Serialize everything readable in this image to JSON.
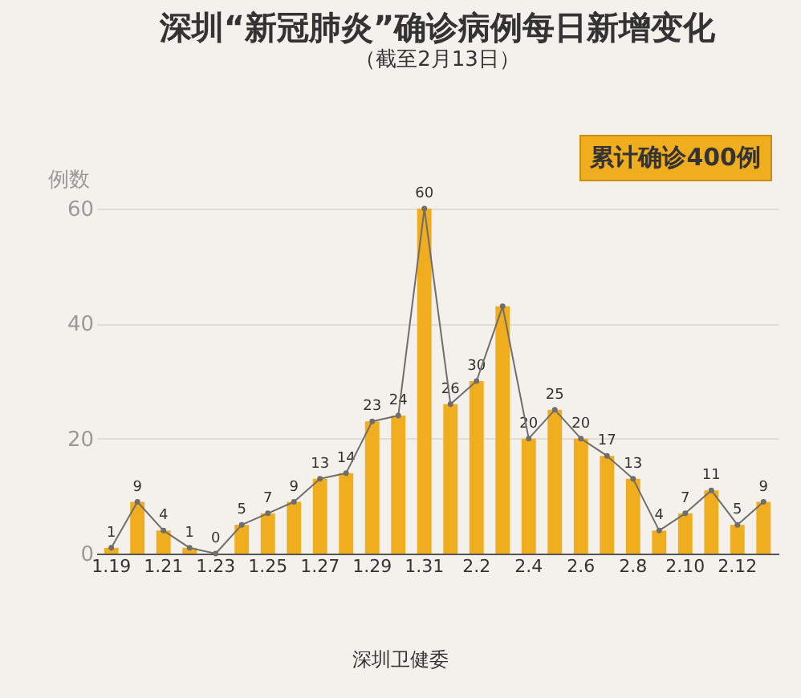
{
  "chart_data": {
    "type": "bar",
    "title": "深圳“新冠肺炎”确诊病例每日新增变化",
    "subtitle": "（截至2月13日）",
    "ylabel": "例数",
    "categories": [
      "1.19",
      null,
      "1.21",
      null,
      "1.23",
      null,
      "1.25",
      null,
      "1.27",
      null,
      "1.29",
      null,
      "1.31",
      null,
      "2.2",
      null,
      "2.4",
      null,
      "2.6",
      null,
      "2.8",
      null,
      "2.10",
      null,
      "2.12",
      null
    ],
    "series": [
      {
        "color": "#f0ad1e",
        "values": [
          1,
          9,
          4,
          1,
          0,
          5,
          7,
          9,
          13,
          14,
          23,
          24,
          60,
          26,
          30,
          43,
          20,
          25,
          20,
          17,
          13,
          4,
          7,
          11,
          5,
          9
        ],
        "value_labels": [
          "1",
          "9",
          "4",
          "1",
          "0",
          "5",
          "7",
          "9",
          "13",
          "14",
          "23",
          "24",
          "60",
          "26",
          "30",
          null,
          "20",
          "25",
          "20",
          "17",
          "13",
          "4",
          "7",
          "11",
          "5",
          "9"
        ]
      },
      {
        "type": "line",
        "color": "#6e6e6e",
        "values": [
          1,
          9,
          4,
          1,
          0,
          5,
          7,
          9,
          13,
          14,
          23,
          24,
          60,
          26,
          30,
          43,
          20,
          25,
          20,
          17,
          13,
          4,
          7,
          11,
          5,
          9
        ]
      }
    ],
    "ylim": [
      0,
      60
    ],
    "yticks": [
      0,
      20,
      40,
      60
    ],
    "grid": "y",
    "marker": "circle",
    "annotations": [
      "累计确诊400例",
      "深圳卫健委"
    ]
  }
}
